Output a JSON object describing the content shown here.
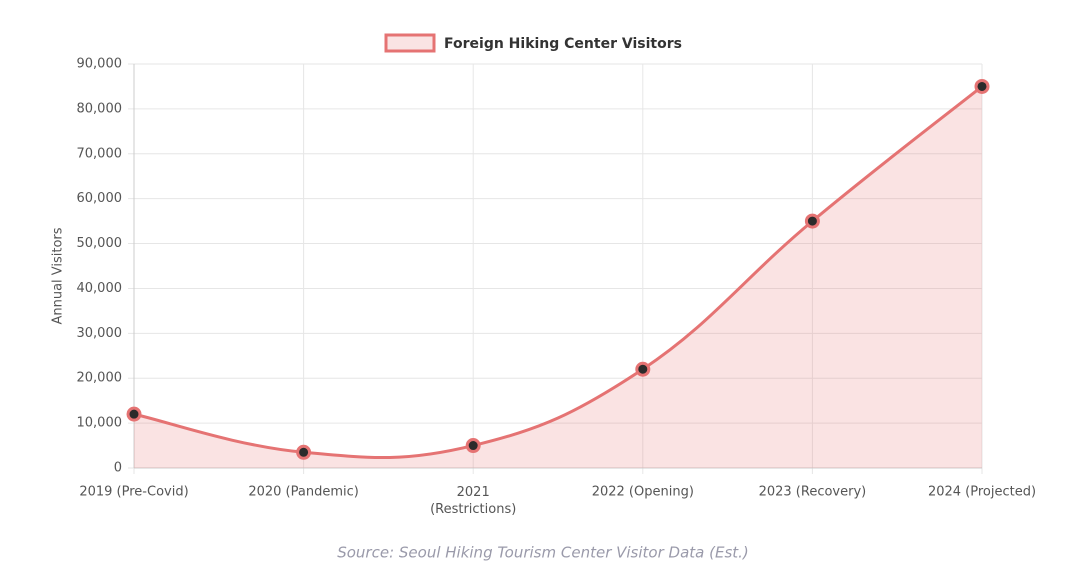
{
  "chart_data": {
    "type": "line",
    "title": "Foreign Hiking Center Visitors",
    "y_label": "Annual Visitors",
    "source": "Source: Seoul Hiking Tourism Center Visitor Data (Est.)",
    "categories": [
      "2019 (Pre-Covid)",
      "2020 (Pandemic)",
      [
        "2021",
        "(Restrictions)"
      ],
      "2022 (Opening)",
      "2023 (Recovery)",
      "2024 (Projected)"
    ],
    "series": [
      {
        "name": "Foreign Hiking Center Visitors",
        "color": "#e57373",
        "values": [
          12000,
          3500,
          5000,
          22000,
          55000,
          85000
        ]
      }
    ],
    "ylim": [
      0,
      90000
    ],
    "yticks": [
      0,
      {
        "value": 10000,
        "label": "10,000"
      },
      {
        "value": 20000,
        "label": "20,000"
      },
      {
        "value": 30000,
        "label": "30,000"
      },
      {
        "value": 40000,
        "label": "40,000"
      },
      {
        "value": 50000,
        "label": "50,000"
      },
      {
        "value": 60000,
        "label": "60,000"
      },
      {
        "value": 70000,
        "label": "70,000"
      },
      {
        "value": 80000,
        "label": "80,000"
      },
      {
        "value": 90000,
        "label": "90,000"
      }
    ],
    "grid": true,
    "fill": true,
    "legend": "top"
  }
}
